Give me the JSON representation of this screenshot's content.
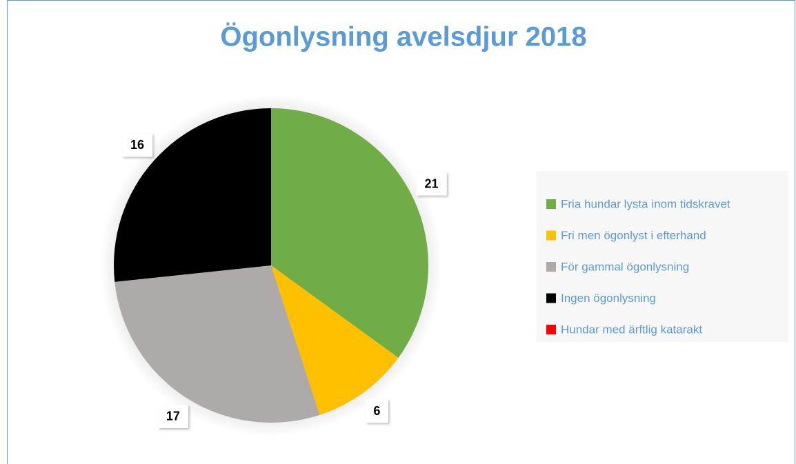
{
  "chart_data": {
    "type": "pie",
    "title": "Ögonlysning avelsdjur 2018",
    "categories": [
      "Fria hundar lysta inom tidskravet",
      "Fri men ögonlyst i efterhand",
      "För gammal ögonlysning",
      "Ingen ögonlysning",
      "Hundar med ärftlig katarakt"
    ],
    "values": [
      21,
      6,
      17,
      16,
      0
    ],
    "colors": [
      "#70ad47",
      "#ffc000",
      "#aeaaaa",
      "#000000",
      "#ff0000"
    ],
    "legend": "right"
  }
}
